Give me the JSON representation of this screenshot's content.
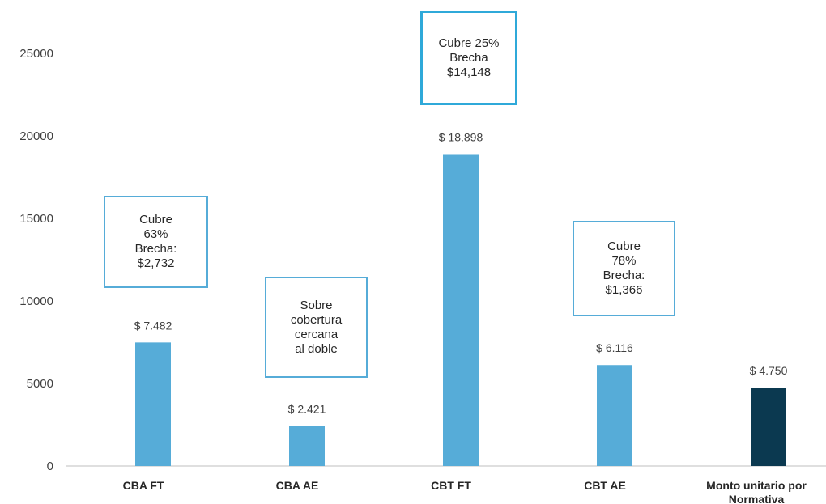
{
  "chart_data": {
    "type": "bar",
    "categories": [
      "CBA FT",
      "CBA AE",
      "CBT FT",
      "CBT AE",
      "Monto unitario por Normativa"
    ],
    "category_label_lines": [
      [
        "CBA FT"
      ],
      [
        "CBA AE"
      ],
      [
        "CBT FT"
      ],
      [
        "CBT AE"
      ],
      [
        "Monto unitario por",
        "Normativa"
      ]
    ],
    "values": [
      7482,
      2421,
      18898,
      6116,
      4750
    ],
    "data_labels": [
      "$ 7.482",
      "$ 2.421",
      "$ 18.898",
      "$ 6.116",
      "$ 4.750"
    ],
    "bar_colors": [
      "#56ACD8",
      "#56ACD8",
      "#56ACD8",
      "#56ACD8",
      "#0B3950"
    ],
    "yticks": [
      "0",
      "5000",
      "10000",
      "15000",
      "20000",
      "25000"
    ],
    "ylim": [
      0,
      27000
    ],
    "grid": false,
    "title": "",
    "xlabel": "",
    "ylabel": "",
    "annotations": [
      {
        "category": "CBA FT",
        "lines": [
          "Cubre",
          "63%",
          "Brecha:",
          "$2,732"
        ],
        "border_color": "#56ACD8"
      },
      {
        "category": "CBA AE",
        "lines": [
          "Sobre",
          "cobertura",
          "cercana",
          "al doble"
        ],
        "border_color": "#56ACD8"
      },
      {
        "category": "CBT FT",
        "lines": [
          "Cubre 25%",
          "Brecha",
          "$14,148"
        ],
        "border_color": "#2FA9D9"
      },
      {
        "category": "CBT AE",
        "lines": [
          "Cubre",
          "78%",
          "Brecha:",
          "$1,366"
        ],
        "border_color": "#56ACD8"
      }
    ]
  }
}
